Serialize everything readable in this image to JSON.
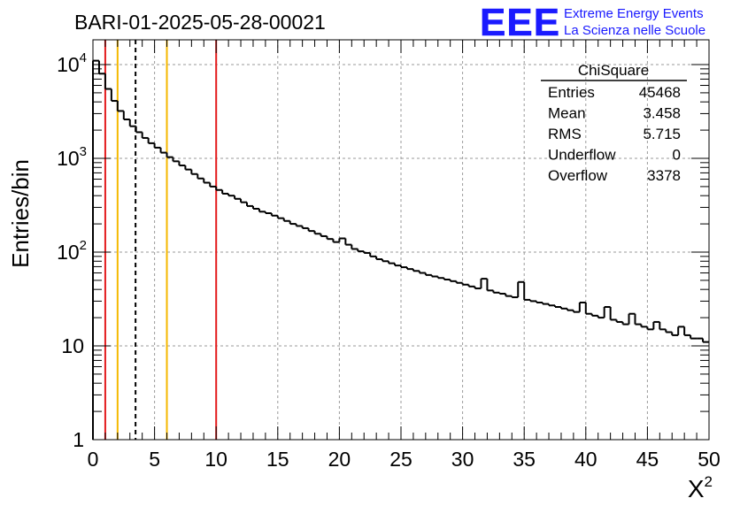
{
  "header": {
    "run_title": "BARI-01-2025-05-28-00021",
    "logo_text": "EEE",
    "logo_line1": "Extreme Energy Events",
    "logo_line2": "La Scienza nelle Scuole"
  },
  "colors": {
    "logo_blue": "#1a1aff",
    "red_line": "#e31a1c",
    "orange_line": "#f5b800",
    "histogram": "#000000",
    "grid": "#9a9a9a"
  },
  "stats_box": {
    "title": "ChiSquare",
    "rows": [
      {
        "label": "Entries",
        "value": "45468"
      },
      {
        "label": "Mean",
        "value": "3.458"
      },
      {
        "label": "RMS",
        "value": "5.715"
      },
      {
        "label": "Underflow",
        "value": "0"
      },
      {
        "label": "Overflow",
        "value": "3378"
      }
    ]
  },
  "chart_data": {
    "type": "histogram",
    "title": "BARI-01-2025-05-28-00021",
    "xlabel": "X²",
    "ylabel": "Entries/bin",
    "xlim": [
      0,
      50
    ],
    "ylim": [
      1,
      18000
    ],
    "yscale": "log",
    "grid": true,
    "bin_width": 0.5,
    "x_ticks": [
      0,
      5,
      10,
      15,
      20,
      25,
      30,
      35,
      40,
      45,
      50
    ],
    "x_tick_labels": [
      "0",
      "5",
      "10",
      "15",
      "20",
      "25",
      "30",
      "35",
      "40",
      "45",
      "50"
    ],
    "y_ticks": [
      1,
      10,
      100,
      1000,
      10000
    ],
    "y_tick_labels": [
      {
        "base": "1",
        "exp": ""
      },
      {
        "base": "10",
        "exp": ""
      },
      {
        "base": "10",
        "exp": "2"
      },
      {
        "base": "10",
        "exp": "3"
      },
      {
        "base": "10",
        "exp": "4"
      }
    ],
    "reference_lines": [
      {
        "x": 1,
        "color": "red",
        "style": "solid"
      },
      {
        "x": 2,
        "color": "orange",
        "style": "solid"
      },
      {
        "x": 3.458,
        "color": "black",
        "style": "dashed"
      },
      {
        "x": 6,
        "color": "orange",
        "style": "solid"
      },
      {
        "x": 10,
        "color": "red",
        "style": "solid"
      }
    ],
    "bin_values": [
      11000,
      8000,
      5500,
      4100,
      3200,
      2600,
      2200,
      1900,
      1650,
      1450,
      1300,
      1150,
      1030,
      930,
      840,
      760,
      680,
      610,
      550,
      500,
      460,
      420,
      400,
      370,
      340,
      310,
      290,
      270,
      260,
      245,
      230,
      215,
      200,
      190,
      180,
      168,
      157,
      148,
      138,
      128,
      140,
      120,
      108,
      102,
      98,
      90,
      84,
      80,
      76,
      72,
      69,
      66,
      63,
      60,
      57,
      55,
      53,
      51,
      49,
      47,
      45,
      43,
      41,
      52,
      39,
      37,
      36,
      34,
      33,
      48,
      31,
      30,
      29,
      28,
      27,
      26,
      25,
      24,
      23,
      29,
      22,
      21,
      20,
      26,
      19,
      18,
      17,
      22,
      17,
      16,
      15,
      18,
      15,
      14,
      13,
      16,
      13,
      12,
      12,
      11
    ]
  }
}
